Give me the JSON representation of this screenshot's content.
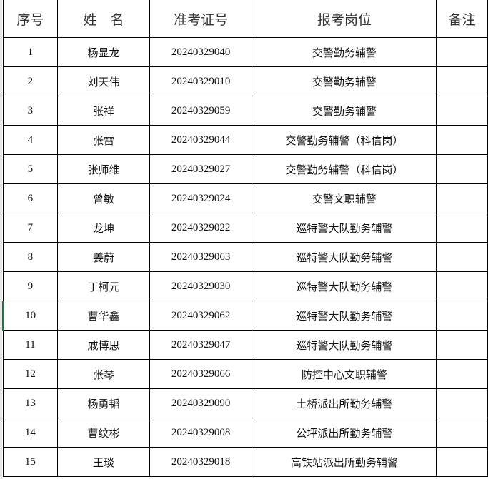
{
  "headers": [
    "序号",
    "姓　名",
    "准考证号",
    "报考岗位",
    "备注"
  ],
  "rows": [
    {
      "no": "1",
      "name": "杨显龙",
      "id": "20240329040",
      "post": "交警勤务辅警",
      "note": ""
    },
    {
      "no": "2",
      "name": "刘天伟",
      "id": "20240329010",
      "post": "交警勤务辅警",
      "note": ""
    },
    {
      "no": "3",
      "name": "张祥",
      "id": "20240329059",
      "post": "交警勤务辅警",
      "note": ""
    },
    {
      "no": "4",
      "name": "张雷",
      "id": "20240329044",
      "post": "交警勤务辅警（科信岗）",
      "note": ""
    },
    {
      "no": "5",
      "name": "张师维",
      "id": "20240329027",
      "post": "交警勤务辅警（科信岗）",
      "note": ""
    },
    {
      "no": "6",
      "name": "曾敏",
      "id": "20240329024",
      "post": "交警文职辅警",
      "note": ""
    },
    {
      "no": "7",
      "name": "龙坤",
      "id": "20240329022",
      "post": "巡特警大队勤务辅警",
      "note": ""
    },
    {
      "no": "8",
      "name": "姜蔚",
      "id": "20240329063",
      "post": "巡特警大队勤务辅警",
      "note": ""
    },
    {
      "no": "9",
      "name": "丁柯元",
      "id": "20240329030",
      "post": "巡特警大队勤务辅警",
      "note": ""
    },
    {
      "no": "10",
      "name": "曹华鑫",
      "id": "20240329062",
      "post": "巡特警大队勤务辅警",
      "note": ""
    },
    {
      "no": "11",
      "name": "戚博思",
      "id": "20240329047",
      "post": "巡特警大队勤务辅警",
      "note": ""
    },
    {
      "no": "12",
      "name": "张琴",
      "id": "20240329066",
      "post": "防控中心文职辅警",
      "note": ""
    },
    {
      "no": "13",
      "name": "杨勇韬",
      "id": "20240329090",
      "post": "土桥派出所勤务辅警",
      "note": ""
    },
    {
      "no": "14",
      "name": "曹纹彬",
      "id": "20240329008",
      "post": "公坪派出所勤务辅警",
      "note": ""
    },
    {
      "no": "15",
      "name": "王琰",
      "id": "20240329018",
      "post": "高铁站派出所勤务辅警",
      "note": ""
    }
  ]
}
